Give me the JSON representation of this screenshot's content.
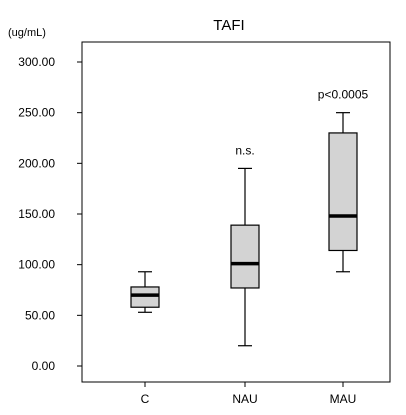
{
  "chart_data": {
    "type": "box",
    "title": "TAFI",
    "unit_label": "(ug/mL)",
    "xlabel": "",
    "ylabel": "",
    "ylim": [
      0,
      300
    ],
    "yticks": [
      0,
      50,
      100,
      150,
      200,
      250,
      300
    ],
    "ytick_labels": [
      "0.00",
      "50.00",
      "100.00",
      "150.00",
      "200.00",
      "250.00",
      "300.00"
    ],
    "categories": [
      "C",
      "NAU",
      "MAU"
    ],
    "boxes": [
      {
        "category": "C",
        "whisker_low": 53,
        "q1": 58,
        "median": 70,
        "q3": 78,
        "whisker_high": 93,
        "annotation": ""
      },
      {
        "category": "NAU",
        "whisker_low": 20,
        "q1": 77,
        "median": 101,
        "q3": 139,
        "whisker_high": 195,
        "annotation": "n.s."
      },
      {
        "category": "MAU",
        "whisker_low": 93,
        "q1": 114,
        "median": 148,
        "q3": 230,
        "whisker_high": 250,
        "annotation": "p<0.0005"
      }
    ],
    "box_fill": "#d3d3d3",
    "line_color": "#000000",
    "grid": false
  }
}
